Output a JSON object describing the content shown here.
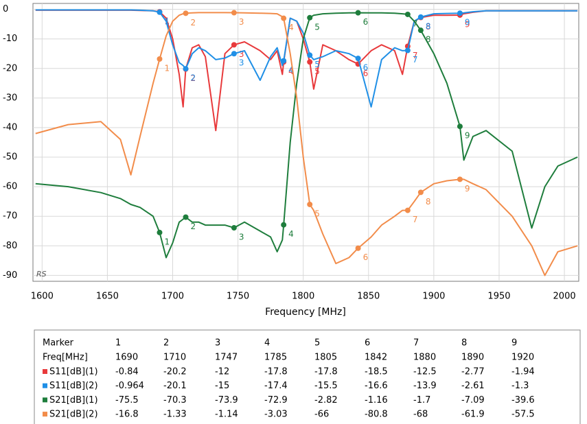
{
  "chart_data": {
    "type": "line",
    "xlabel": "Frequency [MHz]",
    "watermark": "RS",
    "xlim": [
      1593,
      2011
    ],
    "xticks": [
      1600,
      1650,
      1700,
      1750,
      1800,
      1850,
      1900,
      1950,
      2000
    ],
    "ylim": [
      -92,
      2
    ],
    "yticks": [
      0,
      -10,
      -20,
      -30,
      -40,
      -50,
      -60,
      -70,
      -80,
      -90
    ],
    "grid": true,
    "x": [
      1595,
      1620,
      1645,
      1660,
      1668,
      1675,
      1685,
      1690,
      1695,
      1700,
      1705,
      1708,
      1710,
      1715,
      1720,
      1725,
      1733,
      1740,
      1747,
      1755,
      1767,
      1775,
      1780,
      1784,
      1785,
      1790,
      1795,
      1800,
      1805,
      1808,
      1815,
      1825,
      1835,
      1842,
      1852,
      1860,
      1870,
      1876,
      1880,
      1885,
      1890,
      1900,
      1910,
      1920,
      1923,
      1930,
      1940,
      1960,
      1975,
      1985,
      1995,
      2010
    ],
    "markers": {
      "header": "Marker",
      "freq_header": "Freq[MHz]",
      "numbers": [
        1,
        2,
        3,
        4,
        5,
        6,
        7,
        8,
        9
      ],
      "freqs": [
        1690,
        1710,
        1747,
        1785,
        1805,
        1842,
        1880,
        1890,
        1920
      ]
    },
    "series": [
      {
        "name": "S11[dB](1)",
        "color": "#e8393b",
        "values": [
          -0.3,
          -0.3,
          -0.3,
          -0.3,
          -0.3,
          -0.4,
          -0.5,
          -0.84,
          -3,
          -10,
          -22,
          -33,
          -20.2,
          -13,
          -12,
          -16,
          -41,
          -15,
          -12,
          -11,
          -14,
          -17,
          -14,
          -22,
          -17.8,
          -3,
          -4,
          -10,
          -17.8,
          -27,
          -12,
          -14,
          -17,
          -18.5,
          -14,
          -12,
          -14,
          -22,
          -12.5,
          -4,
          -2.77,
          -2,
          -2,
          -1.94,
          -1.5,
          -1,
          -0.5,
          -0.5,
          -0.5,
          -0.5,
          -0.5,
          -0.5
        ],
        "marker_values": [
          -0.84,
          -20.2,
          -12,
          -17.8,
          -17.8,
          -18.5,
          -12.5,
          -2.77,
          -1.94
        ]
      },
      {
        "name": "S11[dB](2)",
        "color": "#1f8fe6",
        "values": [
          -0.2,
          -0.2,
          -0.2,
          -0.2,
          -0.2,
          -0.3,
          -0.5,
          -0.964,
          -4,
          -12,
          -18,
          -19,
          -20.1,
          -15,
          -13,
          -14,
          -17,
          -16.5,
          -15,
          -14,
          -24,
          -16,
          -13,
          -19,
          -17.4,
          -3,
          -4,
          -8,
          -15.5,
          -17,
          -16,
          -14,
          -15,
          -16.6,
          -33,
          -17,
          -13,
          -14,
          -13.9,
          -4,
          -2.61,
          -1.5,
          -1.4,
          -1.3,
          -1.2,
          -0.8,
          -0.5,
          -0.5,
          -0.5,
          -0.5,
          -0.5,
          -0.5
        ],
        "marker_values": [
          -0.964,
          -20.1,
          -15,
          -17.4,
          -15.5,
          -16.6,
          -13.9,
          -2.61,
          -1.3
        ]
      },
      {
        "name": "S21[dB](1)",
        "color": "#1e7d3c",
        "values": [
          -59,
          -60,
          -62,
          -64,
          -66,
          -67,
          -70,
          -75.5,
          -84,
          -79,
          -72,
          -71,
          -70.3,
          -72,
          -72,
          -73,
          -73,
          -73,
          -73.9,
          -72,
          -75,
          -77,
          -82,
          -78,
          -72.9,
          -45,
          -25,
          -10,
          -2.82,
          -2,
          -1.5,
          -1.3,
          -1.2,
          -1.16,
          -1.2,
          -1.2,
          -1.3,
          -1.5,
          -1.7,
          -4,
          -7.09,
          -15,
          -25,
          -39.6,
          -51,
          -43,
          -41,
          -48,
          -74,
          -60,
          -53,
          -50
        ],
        "marker_values": [
          -75.5,
          -70.3,
          -73.9,
          -72.9,
          -2.82,
          -1.16,
          -1.7,
          -7.09,
          -39.6
        ]
      },
      {
        "name": "S21[dB](2)",
        "color": "#f28c4a",
        "values": [
          -42,
          -39,
          -38,
          -44,
          -56,
          -43,
          -25,
          -16.8,
          -9,
          -4,
          -2,
          -1.5,
          -1.33,
          -1.2,
          -1.1,
          -1.1,
          -1.1,
          -1.1,
          -1.14,
          -1.2,
          -1.3,
          -1.4,
          -1.5,
          -2.5,
          -3.03,
          -15,
          -30,
          -50,
          -66,
          -68,
          -76,
          -86,
          -84,
          -80.8,
          -77,
          -73,
          -70,
          -68,
          -68,
          -65,
          -61.9,
          -59,
          -58,
          -57.5,
          -57.5,
          -59,
          -61,
          -70,
          -80,
          -90,
          -82,
          -80
        ],
        "marker_values": [
          -16.8,
          -1.33,
          -1.14,
          -3.03,
          -66,
          -80.8,
          -68,
          -61.9,
          -57.5
        ]
      }
    ]
  }
}
